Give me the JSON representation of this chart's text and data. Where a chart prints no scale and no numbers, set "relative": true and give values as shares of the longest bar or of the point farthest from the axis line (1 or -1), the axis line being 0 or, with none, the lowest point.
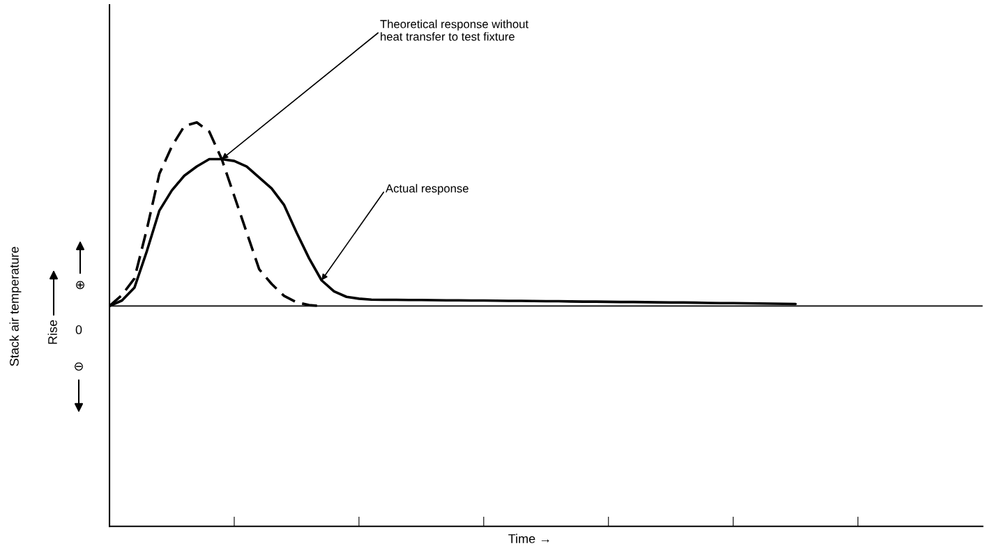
{
  "chart_data": {
    "type": "line",
    "relative": true,
    "categories": [
      null,
      null,
      null,
      null,
      null,
      null,
      null,
      null,
      null,
      null,
      null,
      null,
      null,
      null,
      null,
      null,
      null,
      null,
      null,
      null,
      null,
      null,
      null,
      null,
      null,
      null,
      null,
      null,
      null,
      null,
      null,
      null,
      null,
      null,
      null,
      null,
      null,
      null,
      null,
      null,
      null,
      null,
      null,
      null,
      null,
      null,
      null,
      null,
      null,
      null,
      null,
      null,
      null,
      null,
      null,
      null,
      null,
      null,
      null,
      null,
      null,
      null,
      null,
      null,
      null,
      null,
      null,
      null,
      null,
      null
    ],
    "series": [
      {
        "color": "#000000",
        "line_style": "dashed",
        "values": [
          0,
          0.06,
          0.15,
          0.42,
          0.72,
          0.87,
          0.98,
          1.0,
          0.95,
          0.8,
          0.6,
          0.4,
          0.2,
          0.12,
          0.055,
          0.02,
          0.005,
          0,
          null,
          null,
          null,
          null,
          null,
          null,
          null,
          null,
          null,
          null,
          null,
          null,
          null,
          null,
          null,
          null,
          null,
          null,
          null,
          null,
          null,
          null,
          null,
          null,
          null,
          null,
          null,
          null,
          null,
          null,
          null,
          null,
          null,
          null,
          null,
          null,
          null,
          null,
          null,
          null,
          null,
          null,
          null,
          null,
          null,
          null,
          null,
          null,
          null,
          null,
          null,
          null
        ]
      },
      {
        "color": "#000000",
        "line_style": "solid",
        "values": [
          0,
          0.03,
          0.1,
          0.3,
          0.52,
          0.63,
          0.71,
          0.76,
          0.8,
          0.8,
          0.79,
          0.76,
          0.7,
          0.64,
          0.55,
          0.4,
          0.26,
          0.14,
          0.08,
          0.05,
          0.04,
          0.035,
          0.034,
          0.034,
          0.033,
          0.033,
          0.032,
          0.031,
          0.031,
          0.03,
          0.03,
          0.029,
          0.028,
          0.028,
          0.027,
          0.026,
          0.026,
          0.025,
          0.024,
          0.024,
          0.023,
          0.022,
          0.022,
          0.021,
          0.02,
          0.019,
          0.019,
          0.018,
          0.017,
          0.016,
          0.016,
          0.015,
          0.014,
          0.013,
          0.012,
          0.011,
          null,
          null,
          null,
          null,
          null,
          null,
          null,
          null,
          null,
          null,
          null,
          null,
          null,
          null
        ]
      }
    ],
    "annotations": [
      "Theoretical response without\nheat transfer to test fixture",
      "Actual response",
      "Rise",
      "0",
      "⊕",
      "⊖",
      "Stack air temperature",
      "Time →"
    ],
    "grid": false,
    "legend": false,
    "marker": "none"
  }
}
